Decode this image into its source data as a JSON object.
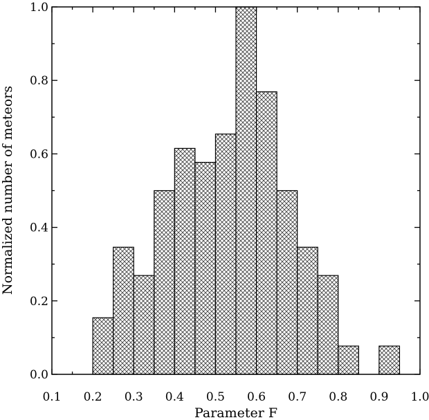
{
  "chart_data": {
    "type": "bar",
    "title": "",
    "xlabel": "Parameter F",
    "ylabel": "Normalized number of meteors",
    "xlim": [
      0.1,
      1.0
    ],
    "ylim": [
      0.0,
      1.0
    ],
    "bin_width": 0.05,
    "x_ticks": [
      "0.1",
      "0.2",
      "0.3",
      "0.4",
      "0.5",
      "0.6",
      "0.7",
      "0.8",
      "0.9",
      "1.0"
    ],
    "y_ticks": [
      "0.0",
      "0.2",
      "0.4",
      "0.6",
      "0.8",
      "1.0"
    ],
    "bins": [
      {
        "start": 0.2,
        "value": 0.154
      },
      {
        "start": 0.25,
        "value": 0.346
      },
      {
        "start": 0.3,
        "value": 0.269
      },
      {
        "start": 0.35,
        "value": 0.5
      },
      {
        "start": 0.4,
        "value": 0.615
      },
      {
        "start": 0.45,
        "value": 0.577
      },
      {
        "start": 0.5,
        "value": 0.654
      },
      {
        "start": 0.55,
        "value": 1.0
      },
      {
        "start": 0.6,
        "value": 0.769
      },
      {
        "start": 0.65,
        "value": 0.5
      },
      {
        "start": 0.7,
        "value": 0.346
      },
      {
        "start": 0.75,
        "value": 0.269
      },
      {
        "start": 0.8,
        "value": 0.077
      },
      {
        "start": 0.9,
        "value": 0.077
      }
    ],
    "bar_fill": "crosshatch",
    "bar_color": "#000000",
    "background": "#ffffff",
    "grid": false,
    "legend": "none"
  }
}
